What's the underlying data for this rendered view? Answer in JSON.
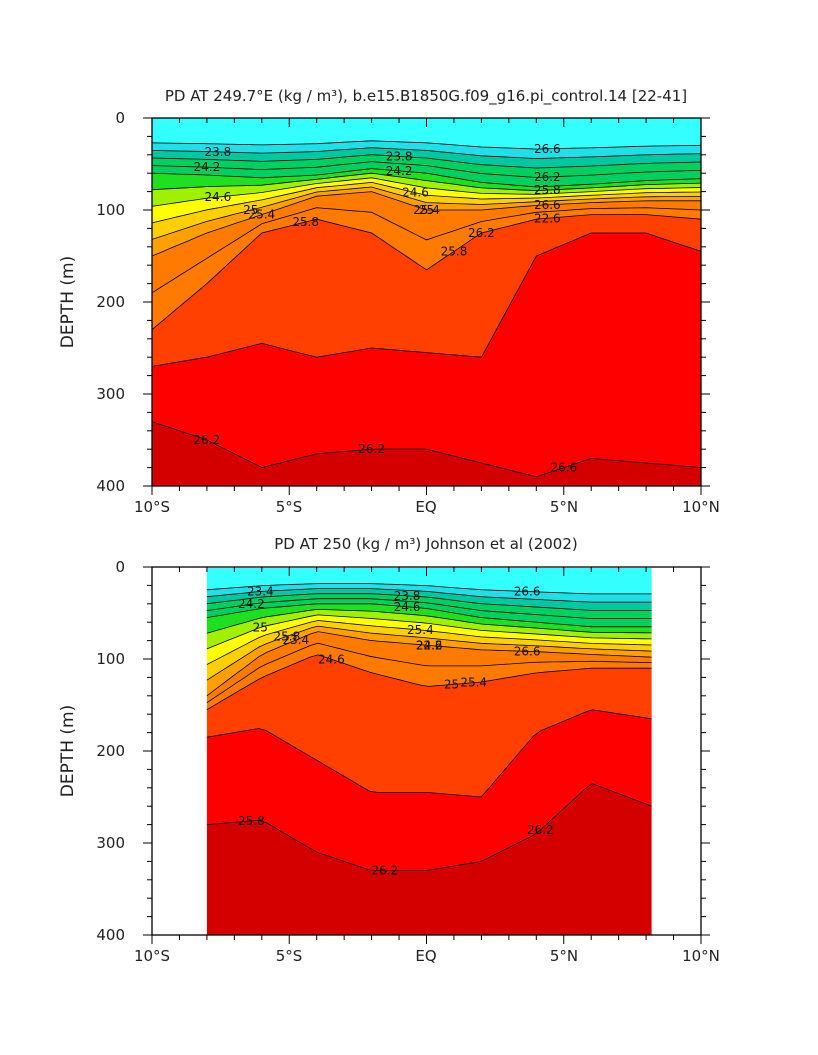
{
  "chart_data": [
    {
      "type": "heatmap",
      "panel": "top",
      "title": "PD AT 249.7°E (kg / m³), b.e15.B1850G.f09_g16.pi_control.14 [22-41]",
      "ylabel": "DEPTH (m)",
      "xlabel": "",
      "x_ticks": [
        "10°S",
        "5°S",
        "EQ",
        "5°N",
        "10°N"
      ],
      "x_values": [
        -10,
        -5,
        0,
        5,
        10
      ],
      "y_ticks": [
        "0",
        "100",
        "200",
        "300",
        "400"
      ],
      "y_values": [
        0,
        100,
        200,
        300,
        400
      ],
      "xlim": [
        -10,
        10
      ],
      "ylim": [
        400,
        0
      ],
      "data_xlim": [
        -10,
        10
      ],
      "contour_labels": [
        "23.8",
        "23.8",
        "24.2",
        "24.2",
        "24.6",
        "24.6",
        "25",
        "25",
        "25.4",
        "25.4",
        "25.8",
        "25.8",
        "26.2",
        "26.2",
        "26.2",
        "26.6",
        "26.6",
        "26.6",
        "22.6",
        "25.8",
        "26.2"
      ],
      "depth_profiles": {
        "x": [
          -10,
          -8,
          -6,
          -4,
          -2,
          0,
          2,
          4,
          6,
          8,
          10
        ],
        "iso_24_2": [
          60,
          62,
          65,
          62,
          55,
          60,
          70,
          75,
          72,
          68,
          66
        ],
        "iso_25_8": [
          150,
          125,
          105,
          85,
          80,
          100,
          100,
          95,
          92,
          90,
          90
        ],
        "iso_26_2": [
          230,
          180,
          125,
          110,
          125,
          165,
          125,
          110,
          105,
          105,
          110
        ],
        "iso_26_4": [
          270,
          260,
          245,
          260,
          250,
          255,
          260,
          150,
          125,
          125,
          145
        ],
        "iso_26_6": [
          330,
          350,
          380,
          365,
          360,
          360,
          375,
          390,
          370,
          375,
          380
        ]
      }
    },
    {
      "type": "heatmap",
      "panel": "bottom",
      "title": "PD AT 250 (kg / m³) Johnson et al (2002)",
      "ylabel": "DEPTH (m)",
      "xlabel": "",
      "x_ticks": [
        "10°S",
        "5°S",
        "EQ",
        "5°N",
        "10°N"
      ],
      "x_values": [
        -10,
        -5,
        0,
        5,
        10
      ],
      "y_ticks": [
        "0",
        "100",
        "200",
        "300",
        "400"
      ],
      "y_values": [
        0,
        100,
        200,
        300,
        400
      ],
      "xlim": [
        -10,
        10
      ],
      "ylim": [
        400,
        0
      ],
      "data_xlim": [
        -8,
        8.2
      ],
      "contour_labels": [
        "23.4",
        "23.8",
        "24.2",
        "24.6",
        "25",
        "25.4",
        "25.8",
        "22.6",
        "23.4",
        "24.2",
        "24.6",
        "25",
        "25.4",
        "25.8",
        "26.2",
        "26.2",
        "26.6",
        "26.6"
      ],
      "depth_profiles": {
        "x": [
          -8,
          -6,
          -4,
          -2,
          0,
          2,
          4,
          6,
          8.2
        ],
        "iso_24_2": [
          55,
          45,
          40,
          40,
          45,
          55,
          60,
          65,
          65
        ],
        "iso_25_8": [
          140,
          95,
          70,
          80,
          85,
          90,
          92,
          95,
          98
        ],
        "iso_26_2": [
          155,
          120,
          95,
          115,
          130,
          125,
          115,
          110,
          110
        ],
        "iso_26_4": [
          185,
          175,
          210,
          245,
          245,
          250,
          180,
          155,
          165
        ],
        "iso_26_6": [
          280,
          275,
          310,
          330,
          330,
          320,
          290,
          235,
          260
        ]
      }
    }
  ]
}
